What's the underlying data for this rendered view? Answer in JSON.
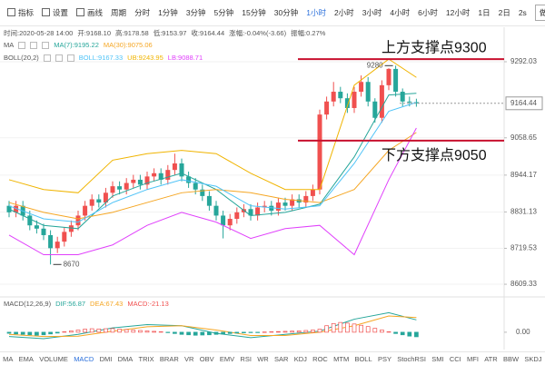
{
  "toolbar": {
    "tools": [
      "指标",
      "设置",
      "画线"
    ],
    "period_label": "周期",
    "periods": [
      "分时",
      "1分钟",
      "3分钟",
      "5分钟",
      "15分钟",
      "30分钟",
      "1小时",
      "2小时",
      "3小时",
      "4小时",
      "6小时",
      "12小时",
      "1日",
      "2日"
    ],
    "active_period": 6,
    "speed": "2s",
    "button": "做空区"
  },
  "info": [
    "时间:2020-05-28 14:00",
    "开:9168.10",
    "高:9178.58",
    "低:9153.97",
    "收:9164.44",
    "涨幅:-0.04%(-3.66)",
    "振幅:0.27%"
  ],
  "chart_data": {
    "type": "candlestick",
    "up_color": "#f0504f",
    "down_color": "#26a69a",
    "grid": true,
    "ylim": [
      8590,
      9370
    ],
    "yticks": [
      8609.33,
      8719.53,
      8831.13,
      8944.17,
      9058.65,
      9292.03
    ],
    "current_price": 9164.44,
    "open": [
      8850,
      8830,
      8850,
      8820,
      8790,
      8780,
      8760,
      8720,
      8740,
      8770,
      8790,
      8820,
      8850,
      8870,
      8860,
      8890,
      8910,
      8900,
      8920,
      8930,
      8915,
      8940,
      8950,
      8930,
      8960,
      8980,
      8940,
      8920,
      8900,
      8880,
      8850,
      8820,
      8790,
      8810,
      8830,
      8840,
      8820,
      8845,
      8850,
      8835,
      8860,
      8850,
      8870,
      8860,
      8880,
      8900,
      9130,
      9170,
      9200,
      9180,
      9150,
      9200,
      9230,
      9170,
      9120,
      9220,
      9270,
      9200,
      9170,
      9168.1
    ],
    "high": [
      8865,
      8865,
      8865,
      8835,
      8805,
      8795,
      8775,
      8755,
      8785,
      8805,
      8835,
      8865,
      8885,
      8885,
      8905,
      8925,
      8925,
      8935,
      8945,
      8945,
      8955,
      8965,
      8965,
      8975,
      9010,
      8995,
      8955,
      8935,
      8915,
      8895,
      8865,
      8835,
      8825,
      8845,
      8855,
      8855,
      8860,
      8865,
      8865,
      8875,
      8875,
      8885,
      8885,
      8895,
      8915,
      9145,
      9185,
      9230,
      9215,
      9195,
      9215,
      9250,
      9245,
      9180,
      9235,
      9272,
      9280,
      9210,
      9185,
      9178.58
    ],
    "low": [
      8815,
      8815,
      8805,
      8775,
      8765,
      8745,
      8670,
      8705,
      8725,
      8755,
      8775,
      8805,
      8835,
      8845,
      8845,
      8875,
      8885,
      8885,
      8905,
      8900,
      8900,
      8925,
      8915,
      8915,
      8945,
      8925,
      8905,
      8885,
      8865,
      8835,
      8805,
      8750,
      8775,
      8795,
      8815,
      8805,
      8805,
      8830,
      8820,
      8820,
      8835,
      8835,
      8845,
      8845,
      8865,
      8885,
      9115,
      9155,
      9165,
      9135,
      9135,
      9185,
      9155,
      9105,
      9105,
      9205,
      9185,
      9155,
      9155,
      9153.97
    ],
    "close": [
      8830,
      8850,
      8820,
      8790,
      8780,
      8760,
      8720,
      8740,
      8770,
      8790,
      8820,
      8850,
      8870,
      8860,
      8890,
      8910,
      8900,
      8920,
      8930,
      8915,
      8940,
      8950,
      8930,
      8960,
      8980,
      8940,
      8920,
      8900,
      8880,
      8850,
      8820,
      8790,
      8810,
      8830,
      8840,
      8820,
      8845,
      8850,
      8835,
      8860,
      8850,
      8870,
      8860,
      8880,
      8900,
      9130,
      9170,
      9200,
      9180,
      9150,
      9200,
      9230,
      9170,
      9120,
      9220,
      9270,
      9200,
      9170,
      9168.1,
      9164.44
    ],
    "overlay_x": [
      0,
      5,
      10,
      15,
      20,
      25,
      30,
      35,
      40,
      45,
      50,
      55,
      59
    ],
    "overlays": [
      {
        "label": "MA",
        "series": [
          {
            "name": "MA(7):9195.22",
            "color": "#26a69a",
            "values": [
              8840,
              8790,
              8780,
              8880,
              8920,
              8950,
              8900,
              8820,
              8830,
              8855,
              9000,
              9190,
              9195.22
            ]
          },
          {
            "name": "MA(30):9075.06",
            "color": "#f5a623",
            "values": [
              8860,
              8830,
              8810,
              8830,
              8860,
              8890,
              8900,
              8890,
              8870,
              8860,
              8900,
              9020,
              9075.06
            ]
          }
        ]
      },
      {
        "label": "BOLL(20,2)",
        "series": [
          {
            "name": "BOLL:9167.33",
            "color": "#4fc3f7",
            "values": [
              8850,
              8810,
              8800,
              8860,
              8900,
              8930,
              8910,
              8850,
              8840,
              8850,
              8980,
              9140,
              9167.33
            ]
          },
          {
            "name": "UB:9243.95",
            "color": "#f0b400",
            "values": [
              8930,
              8900,
              8890,
              8990,
              9010,
              9020,
              9010,
              8950,
              8900,
              8900,
              9220,
              9300,
              9243.95
            ]
          },
          {
            "name": "LB:9088.71",
            "color": "#e040fb",
            "values": [
              8760,
              8700,
              8700,
              8730,
              8790,
              8830,
              8800,
              8750,
              8780,
              8790,
              8700,
              8930,
              9088.71
            ]
          }
        ]
      }
    ],
    "annotations": [
      {
        "text": "上方支撑点9300",
        "value": 9300
      },
      {
        "text": "下方支撑点9050",
        "value": 9050
      }
    ],
    "extremes": [
      {
        "x": 56,
        "value": 9280
      },
      {
        "x": 6,
        "value": 8670
      }
    ],
    "macd": {
      "label": "MACD(12,26,9)",
      "ylim": [
        -80,
        100
      ],
      "yticks": [
        {
          "value": 0,
          "label": "0.00"
        }
      ],
      "histogram": {
        "name": "MACD:-21.13",
        "color": "#f0504f",
        "values": [
          -5,
          -8,
          -10,
          -12,
          -14,
          -12,
          -8,
          -4,
          2,
          6,
          10,
          14,
          16,
          15,
          16,
          17,
          14,
          12,
          10,
          8,
          6,
          4,
          2,
          -2,
          -6,
          -10,
          -12,
          -14,
          -13,
          -12,
          -10,
          -8,
          -6,
          -4,
          -3,
          -2,
          -1,
          1,
          2,
          3,
          4,
          5,
          6,
          8,
          10,
          14,
          30,
          40,
          45,
          42,
          38,
          32,
          26,
          18,
          10,
          2,
          -6,
          -12,
          -18,
          -21.13
        ]
      },
      "lines": [
        {
          "name": "DIF:56.87",
          "color": "#26a69a",
          "values": [
            -20,
            -30,
            -10,
            20,
            35,
            30,
            -5,
            -25,
            -10,
            5,
            60,
            90,
            56.87
          ]
        },
        {
          "name": "DEA:67.43",
          "color": "#f5a623",
          "values": [
            -10,
            -20,
            -18,
            5,
            25,
            30,
            10,
            -15,
            -15,
            0,
            30,
            75,
            67.43
          ]
        }
      ]
    }
  },
  "indicator_tabs": [
    "MA",
    "EMA",
    "VOLUME",
    "MACD",
    "DMI",
    "DMA",
    "TRIX",
    "BRAR",
    "VR",
    "OBV",
    "EMV",
    "RSI",
    "WR",
    "SAR",
    "KDJ",
    "ROC",
    "MTM",
    "BOLL",
    "PSY",
    "StochRSI",
    "SMI",
    "CCI",
    "MFI",
    "ATR",
    "BBW",
    "SKDJ"
  ],
  "active_tab": 3
}
